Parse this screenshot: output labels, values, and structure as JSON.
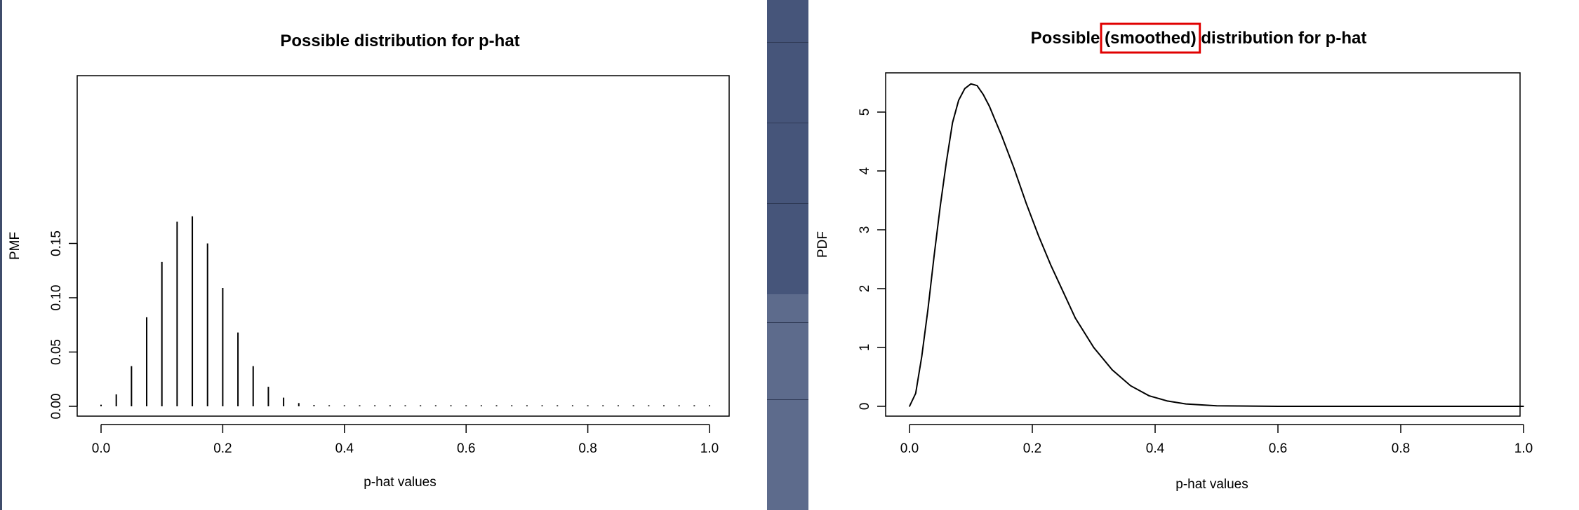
{
  "chart_data": [
    {
      "type": "bar",
      "title": "Possible distribution for p-hat",
      "xlabel": "p-hat values",
      "ylabel": "PMF",
      "xlim": [
        0,
        1
      ],
      "ylim": [
        0,
        0.175
      ],
      "xticks": [
        "0.0",
        "0.2",
        "0.4",
        "0.6",
        "0.8",
        "1.0"
      ],
      "xtick_values": [
        0,
        0.2,
        0.4,
        0.6,
        0.8,
        1.0
      ],
      "yticks": [
        "0.00",
        "0.05",
        "0.10",
        "0.15"
      ],
      "ytick_values": [
        0,
        0.05,
        0.1,
        0.15
      ],
      "x": [
        0,
        0.025,
        0.05,
        0.075,
        0.1,
        0.125,
        0.15,
        0.175,
        0.2,
        0.225,
        0.25,
        0.275,
        0.3,
        0.325,
        0.35,
        0.375,
        0.4,
        0.425,
        0.45,
        0.475,
        0.5,
        0.525,
        0.55,
        0.575,
        0.6,
        0.625,
        0.65,
        0.675,
        0.7,
        0.725,
        0.75,
        0.775,
        0.8,
        0.825,
        0.85,
        0.875,
        0.9,
        0.925,
        0.95,
        0.975,
        1.0
      ],
      "values": [
        0.0015,
        0.011,
        0.037,
        0.082,
        0.133,
        0.17,
        0.175,
        0.15,
        0.109,
        0.068,
        0.037,
        0.018,
        0.008,
        0.003,
        0.0012,
        0.0004,
        0.0002,
        0.0001,
        0.0001,
        0.0001,
        0.0001,
        0.0001,
        0.0001,
        0.0001,
        0.0001,
        0.0001,
        0.0001,
        0.0001,
        0.0001,
        0.0001,
        0.0001,
        0.0001,
        0.0001,
        0.0001,
        0.0001,
        0.0001,
        0.0001,
        0.0001,
        0.0001,
        0.0001,
        0.0001
      ],
      "grid": false,
      "color": "#000000"
    },
    {
      "type": "line",
      "title_parts": [
        "Possible ",
        "(smoothed)",
        " distribution for p-hat"
      ],
      "highlight_color": "#e00000",
      "xlabel": "p-hat values",
      "ylabel": "PDF",
      "xlim": [
        0,
        1
      ],
      "ylim": [
        0,
        5.45
      ],
      "xticks": [
        "0.0",
        "0.2",
        "0.4",
        "0.6",
        "0.8",
        "1.0"
      ],
      "xtick_values": [
        0,
        0.2,
        0.4,
        0.6,
        0.8,
        1.0
      ],
      "yticks": [
        "0",
        "1",
        "2",
        "3",
        "4",
        "5"
      ],
      "ytick_values": [
        0,
        1,
        2,
        3,
        4,
        5
      ],
      "x": [
        0,
        0.01,
        0.02,
        0.03,
        0.04,
        0.05,
        0.06,
        0.07,
        0.08,
        0.09,
        0.1,
        0.11,
        0.12,
        0.13,
        0.14,
        0.15,
        0.17,
        0.19,
        0.21,
        0.23,
        0.25,
        0.27,
        0.3,
        0.33,
        0.36,
        0.39,
        0.42,
        0.45,
        0.5,
        0.6,
        0.7,
        0.8,
        0.9,
        1.0
      ],
      "y": [
        0,
        0.22,
        0.85,
        1.65,
        2.55,
        3.4,
        4.15,
        4.82,
        5.2,
        5.4,
        5.48,
        5.45,
        5.3,
        5.1,
        4.85,
        4.6,
        4.05,
        3.45,
        2.9,
        2.4,
        1.95,
        1.5,
        1.0,
        0.62,
        0.35,
        0.18,
        0.09,
        0.04,
        0.01,
        0,
        0,
        0,
        0,
        0
      ],
      "grid": false,
      "color": "#000000"
    }
  ]
}
